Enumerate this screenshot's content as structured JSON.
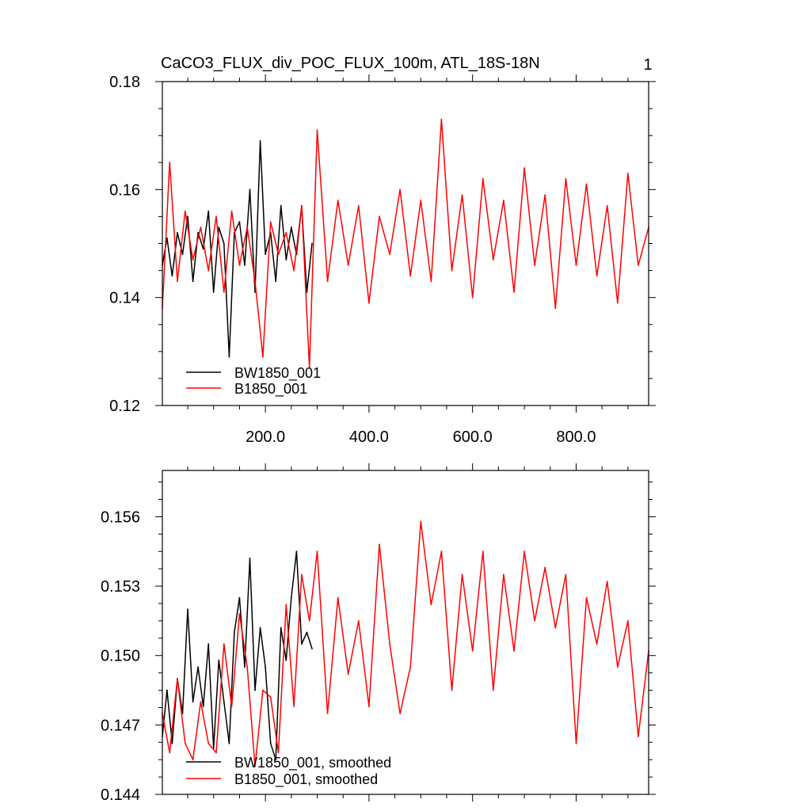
{
  "chart_data": [
    {
      "type": "line",
      "title": "CaCO3_FLUX_div_POC_FLUX_100m, ATL_18S-18N",
      "corner_label": "1",
      "xlim": [
        1,
        940
      ],
      "ylim": [
        0.12,
        0.18
      ],
      "xticks": [
        200,
        400,
        600,
        800
      ],
      "xtick_labels": [
        "200.0",
        "400.0",
        "600.0",
        "800.0"
      ],
      "yticks": [
        0.12,
        0.14,
        0.16,
        0.18
      ],
      "ytick_labels": [
        "0.12",
        "0.14",
        "0.16",
        "0.18"
      ],
      "grid": false,
      "legend_position": "bottom-left",
      "series": [
        {
          "name": "BW1850_001",
          "color": "#000000",
          "x": [
            1,
            10,
            20,
            30,
            40,
            50,
            60,
            70,
            80,
            90,
            100,
            110,
            120,
            130,
            140,
            150,
            160,
            170,
            180,
            190,
            200,
            210,
            220,
            230,
            240,
            250,
            260,
            270,
            280,
            290
          ],
          "values": [
            0.146,
            0.151,
            0.144,
            0.152,
            0.148,
            0.155,
            0.143,
            0.152,
            0.149,
            0.156,
            0.141,
            0.153,
            0.15,
            0.129,
            0.152,
            0.154,
            0.146,
            0.16,
            0.141,
            0.169,
            0.148,
            0.152,
            0.143,
            0.157,
            0.147,
            0.153,
            0.148,
            0.157,
            0.141,
            0.15
          ]
        },
        {
          "name": "B1850_001",
          "color": "#ff0000",
          "x": [
            1,
            15,
            30,
            45,
            60,
            75,
            90,
            105,
            120,
            135,
            150,
            165,
            180,
            195,
            210,
            225,
            240,
            255,
            270,
            285,
            300,
            320,
            340,
            360,
            380,
            400,
            420,
            440,
            460,
            480,
            500,
            520,
            540,
            560,
            580,
            600,
            620,
            640,
            660,
            680,
            700,
            720,
            740,
            760,
            780,
            800,
            820,
            840,
            860,
            880,
            900,
            920,
            940
          ],
          "values": [
            0.138,
            0.165,
            0.143,
            0.156,
            0.147,
            0.153,
            0.145,
            0.155,
            0.141,
            0.156,
            0.146,
            0.153,
            0.143,
            0.129,
            0.154,
            0.148,
            0.152,
            0.145,
            0.157,
            0.127,
            0.171,
            0.143,
            0.158,
            0.146,
            0.157,
            0.139,
            0.155,
            0.148,
            0.16,
            0.144,
            0.158,
            0.143,
            0.173,
            0.145,
            0.159,
            0.14,
            0.162,
            0.147,
            0.158,
            0.141,
            0.164,
            0.146,
            0.159,
            0.138,
            0.162,
            0.146,
            0.161,
            0.144,
            0.157,
            0.139,
            0.163,
            0.146,
            0.153
          ]
        }
      ]
    },
    {
      "type": "line",
      "xlim": [
        1,
        940
      ],
      "ylim": [
        0.144,
        0.158
      ],
      "yticks": [
        0.144,
        0.147,
        0.15,
        0.153,
        0.156
      ],
      "ytick_labels": [
        "0.144",
        "0.147",
        "0.150",
        "0.153",
        "0.156"
      ],
      "grid": false,
      "legend_position": "bottom-left",
      "series": [
        {
          "name": "BW1850_001, smoothed",
          "color": "#000000",
          "x": [
            1,
            10,
            20,
            30,
            40,
            50,
            60,
            70,
            80,
            90,
            100,
            110,
            120,
            130,
            140,
            150,
            160,
            170,
            180,
            190,
            200,
            210,
            220,
            230,
            240,
            250,
            260,
            270,
            280,
            290
          ],
          "values": [
            0.1465,
            0.1485,
            0.1462,
            0.149,
            0.1475,
            0.152,
            0.148,
            0.1495,
            0.1478,
            0.1505,
            0.146,
            0.1498,
            0.148,
            0.1462,
            0.151,
            0.1525,
            0.1495,
            0.1542,
            0.1485,
            0.1512,
            0.1495,
            0.1462,
            0.1455,
            0.1512,
            0.1498,
            0.1525,
            0.1545,
            0.1505,
            0.151,
            0.1503
          ]
        },
        {
          "name": "B1850_001, smoothed",
          "color": "#ff0000",
          "x": [
            1,
            15,
            30,
            45,
            60,
            75,
            90,
            105,
            120,
            135,
            150,
            165,
            180,
            195,
            210,
            225,
            240,
            255,
            270,
            285,
            300,
            320,
            340,
            360,
            380,
            400,
            420,
            440,
            460,
            480,
            500,
            520,
            540,
            560,
            580,
            600,
            620,
            640,
            660,
            680,
            700,
            720,
            740,
            760,
            780,
            800,
            820,
            840,
            860,
            880,
            900,
            920,
            940
          ],
          "values": [
            0.1475,
            0.1458,
            0.149,
            0.1462,
            0.1455,
            0.148,
            0.1462,
            0.1458,
            0.1505,
            0.1478,
            0.1518,
            0.1495,
            0.1452,
            0.1485,
            0.1482,
            0.1458,
            0.1522,
            0.1478,
            0.1535,
            0.1515,
            0.1545,
            0.1475,
            0.1525,
            0.1492,
            0.1515,
            0.1478,
            0.1548,
            0.1505,
            0.1475,
            0.1495,
            0.1558,
            0.1522,
            0.1545,
            0.1485,
            0.1535,
            0.1502,
            0.1545,
            0.1485,
            0.1535,
            0.1502,
            0.1545,
            0.1515,
            0.1538,
            0.1512,
            0.1535,
            0.1462,
            0.1525,
            0.1505,
            0.1532,
            0.1495,
            0.1515,
            0.1465,
            0.1502
          ]
        }
      ]
    }
  ]
}
